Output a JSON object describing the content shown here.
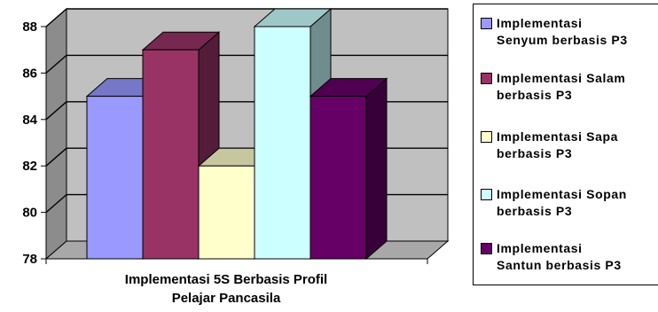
{
  "chart_data": {
    "type": "bar",
    "categories": [
      "Implementasi 5S Berbasis Profil Pelajar Pancasila"
    ],
    "xlabel_lines": [
      "Implementasi 5S Berbasis Profil",
      "Pelajar Pancasila"
    ],
    "ylim": [
      78,
      88
    ],
    "yticks": [
      78,
      80,
      82,
      84,
      86,
      88
    ],
    "grid": true,
    "legend_position": "right",
    "series": [
      {
        "name": "Implementasi\nSenyum berbasis P3",
        "values": [
          85
        ],
        "color": "#9999ff"
      },
      {
        "name": "Implementasi Salam\nberbasis P3",
        "values": [
          87
        ],
        "color": "#993366"
      },
      {
        "name": "Implementasi Sapa\nberbasis P3",
        "values": [
          82
        ],
        "color": "#ffffcc"
      },
      {
        "name": "Implementasi Sopan\nberbasis P3",
        "values": [
          88
        ],
        "color": "#ccffff"
      },
      {
        "name": "Implementasi\nSantun berbasis P3",
        "values": [
          85
        ],
        "color": "#660066"
      }
    ]
  }
}
